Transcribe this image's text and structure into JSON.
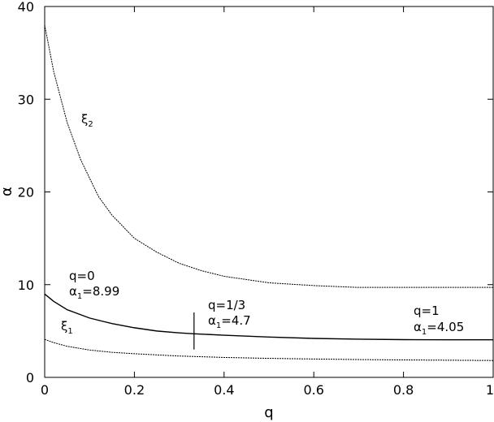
{
  "chart_data": {
    "type": "line",
    "xlabel": "q",
    "ylabel": "α",
    "xlim": [
      0,
      1
    ],
    "ylim": [
      0,
      40
    ],
    "x_ticks": [
      "0",
      "0.2",
      "0.4",
      "0.6",
      "0.8",
      "1"
    ],
    "y_ticks": [
      "0",
      "10",
      "20",
      "30",
      "40"
    ],
    "grid": false,
    "legend": "none",
    "series": [
      {
        "name": "ξ2",
        "style": "dotted",
        "x": [
          0,
          0.02,
          0.05,
          0.08,
          0.1,
          0.12,
          0.15,
          0.2,
          0.25,
          0.3,
          0.35,
          0.4,
          0.5,
          0.6,
          0.7,
          0.8,
          0.9,
          1.0
        ],
        "y": [
          38.0,
          33.0,
          27.5,
          23.5,
          21.5,
          19.5,
          17.5,
          15.0,
          13.5,
          12.3,
          11.5,
          10.9,
          10.2,
          9.9,
          9.7,
          9.7,
          9.7,
          9.7
        ]
      },
      {
        "name": "α1",
        "style": "solid",
        "x": [
          0,
          0.02,
          0.05,
          0.1,
          0.15,
          0.2,
          0.25,
          0.3,
          0.333,
          0.4,
          0.5,
          0.6,
          0.7,
          0.8,
          0.9,
          1.0
        ],
        "y": [
          8.99,
          8.2,
          7.3,
          6.4,
          5.8,
          5.35,
          5.0,
          4.8,
          4.7,
          4.55,
          4.35,
          4.2,
          4.12,
          4.07,
          4.05,
          4.05
        ]
      },
      {
        "name": "ξ1",
        "style": "dotted",
        "x": [
          0,
          0.02,
          0.05,
          0.1,
          0.15,
          0.2,
          0.3,
          0.4,
          0.5,
          0.6,
          0.7,
          0.8,
          0.9,
          1.0
        ],
        "y": [
          4.1,
          3.75,
          3.35,
          2.95,
          2.7,
          2.55,
          2.3,
          2.15,
          2.05,
          1.98,
          1.92,
          1.88,
          1.85,
          1.82
        ]
      }
    ],
    "marker": {
      "x": 0.333,
      "y_from": 3.0,
      "y_to": 7.0
    },
    "annotations": {
      "xi2_label": {
        "base": "ξ",
        "sub": "2"
      },
      "xi1_label": {
        "base": "ξ",
        "sub": "1"
      },
      "q0": {
        "line1": "q=0",
        "base": "α",
        "sub": "1",
        "value": "=8.99"
      },
      "q13": {
        "line1": "q=1/3",
        "base": "α",
        "sub": "1",
        "value": "=4.7"
      },
      "q1": {
        "line1": "q=1",
        "base": "α",
        "sub": "1",
        "value": "=4.05"
      }
    }
  }
}
